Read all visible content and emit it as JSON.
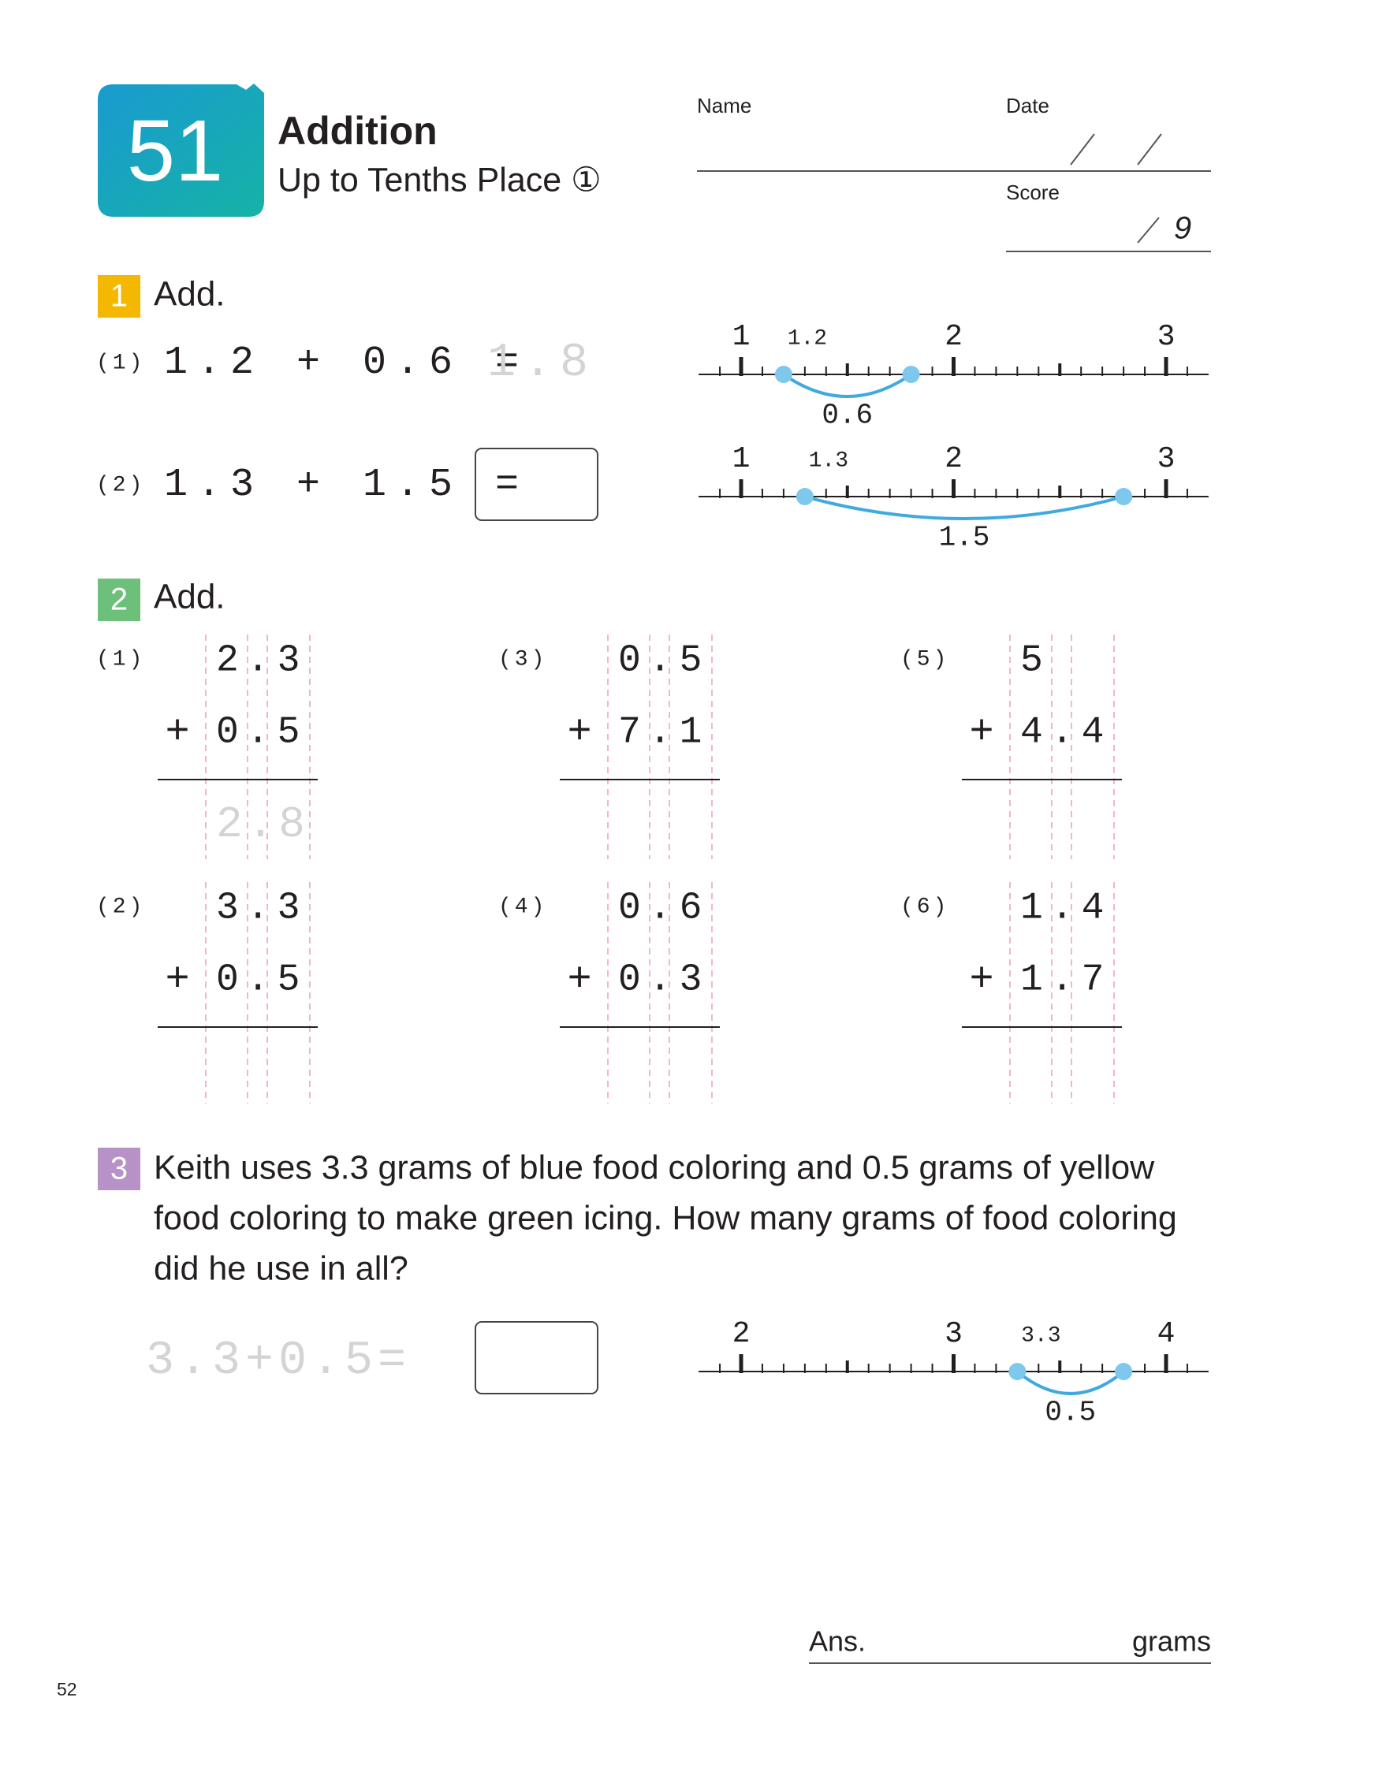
{
  "header": {
    "lesson_number": "51",
    "title": "Addition",
    "subtitle": "Up to Tenths Place ①",
    "name_label": "Name",
    "date_label": "Date",
    "score_label": "Score",
    "score_total": "9"
  },
  "section1": {
    "number": "1",
    "instruction": "Add.",
    "problems": [
      {
        "label": "(1)",
        "expression": "1.2 + 0.6 =",
        "answer": "1.8",
        "number_line": {
          "ticks": [
            "1",
            "2",
            "3"
          ],
          "start_label": "1.2",
          "jump_label": "0.6"
        }
      },
      {
        "label": "(2)",
        "expression": "1.3 + 1.5 =",
        "number_line": {
          "ticks": [
            "1",
            "2",
            "3"
          ],
          "start_label": "1.3",
          "jump_label": "1.5"
        }
      }
    ]
  },
  "section2": {
    "number": "2",
    "instruction": "Add.",
    "problems": [
      {
        "label": "(1)",
        "top": "2.3",
        "operator": "+",
        "bottom": "0.5",
        "answer": "2.8"
      },
      {
        "label": "(2)",
        "top": "3.3",
        "operator": "+",
        "bottom": "0.5"
      },
      {
        "label": "(3)",
        "top": "0.5",
        "operator": "+",
        "bottom": "7.1"
      },
      {
        "label": "(4)",
        "top": "0.6",
        "operator": "+",
        "bottom": "0.3"
      },
      {
        "label": "(5)",
        "top": "5",
        "operator": "+",
        "bottom": "4.4"
      },
      {
        "label": "(6)",
        "top": "1.4",
        "operator": "+",
        "bottom": "1.7"
      }
    ]
  },
  "section3": {
    "number": "3",
    "problem_lines": [
      "Keith uses 3.3 grams of blue food coloring and 0.5 grams of yellow",
      "food coloring to make green icing. How many grams of food coloring",
      "did he use in all?"
    ],
    "expression_hint": "3.3+0.5=",
    "number_line": {
      "ticks": [
        "2",
        "3",
        "4"
      ],
      "start_label": "3.3",
      "jump_label": "0.5"
    },
    "answer_label": "Ans.",
    "answer_unit": "grams"
  },
  "footer": {
    "page_number": "52"
  }
}
